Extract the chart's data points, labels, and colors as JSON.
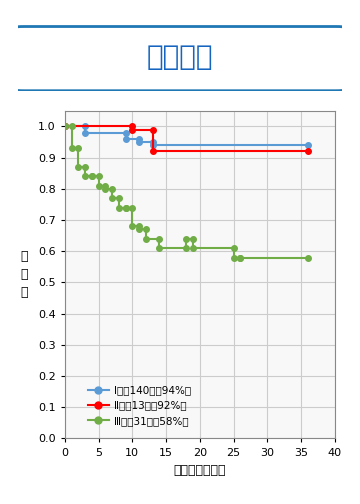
{
  "title": "無再発率",
  "ylabel": "再\n発\n率",
  "xlabel": "観察期間（月）",
  "xlim": [
    0,
    40
  ],
  "ylim": [
    0,
    1.05
  ],
  "xticks": [
    0,
    5,
    10,
    15,
    20,
    25,
    30,
    35,
    40
  ],
  "yticks": [
    0,
    0.1,
    0.2,
    0.3,
    0.4,
    0.5,
    0.6,
    0.7,
    0.8,
    0.9,
    1.0
  ],
  "stage1": {
    "x": [
      0,
      3,
      3,
      9,
      9,
      11,
      11,
      13,
      13,
      36
    ],
    "y": [
      1.0,
      1.0,
      0.98,
      0.98,
      0.96,
      0.96,
      0.95,
      0.95,
      0.94,
      0.94
    ],
    "color": "#5B9BD5",
    "label": "Ⅰ期（140例：94%）"
  },
  "stage2": {
    "x": [
      0,
      10,
      10,
      13,
      13,
      36
    ],
    "y": [
      1.0,
      1.0,
      0.99,
      0.99,
      0.92,
      0.92
    ],
    "color": "#FF0000",
    "label": "Ⅱ期（13例：92%）"
  },
  "stage3": {
    "x": [
      0,
      1,
      1,
      2,
      2,
      3,
      3,
      4,
      4,
      5,
      5,
      6,
      6,
      7,
      7,
      8,
      8,
      9,
      9,
      10,
      10,
      11,
      11,
      12,
      12,
      14,
      14,
      18,
      18,
      19,
      19,
      25,
      25,
      26,
      26,
      36
    ],
    "y": [
      1.0,
      1.0,
      0.93,
      0.93,
      0.87,
      0.87,
      0.84,
      0.84,
      0.84,
      0.84,
      0.81,
      0.81,
      0.8,
      0.8,
      0.77,
      0.77,
      0.74,
      0.74,
      0.74,
      0.74,
      0.68,
      0.68,
      0.67,
      0.67,
      0.64,
      0.64,
      0.61,
      0.61,
      0.64,
      0.64,
      0.61,
      0.61,
      0.58,
      0.58,
      0.58,
      0.58
    ],
    "color": "#70AD47",
    "label": "Ⅲ期（31例：58%）"
  },
  "background_color": "#FFFFFF",
  "grid_color": "#CCCCCC",
  "title_box_color": "#1F4E79",
  "title_bg": "#FFFFFF",
  "title_border": "#1F77B4"
}
